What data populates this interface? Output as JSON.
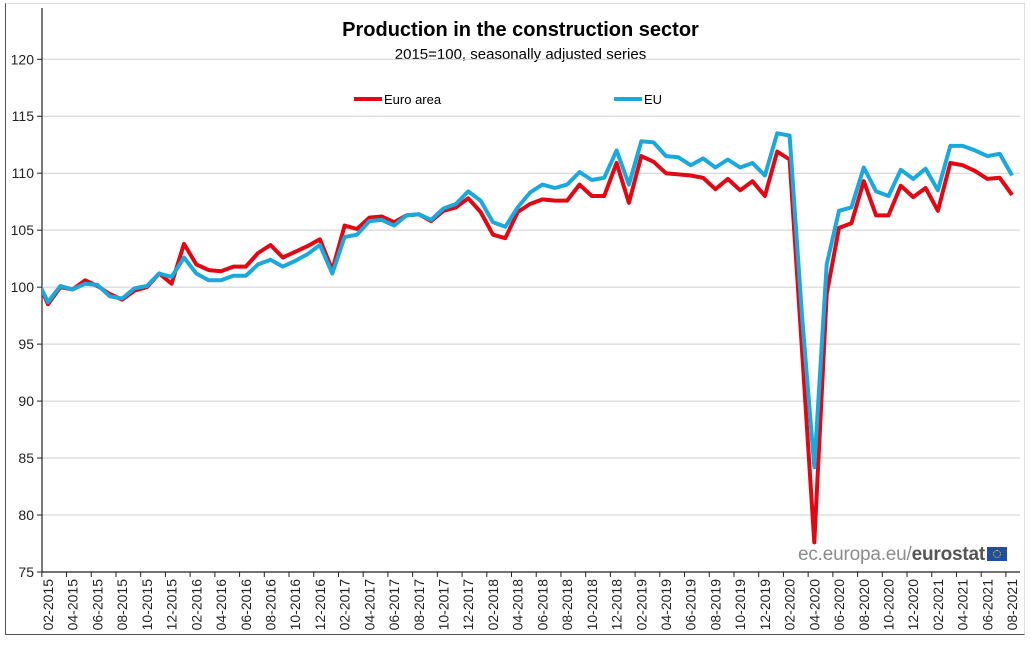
{
  "chart_data": {
    "type": "line",
    "title": "Production in the construction sector",
    "subtitle": "2015=100, seasonally adjusted series",
    "xlabel": "",
    "ylabel": "",
    "ylim": [
      75,
      124.5
    ],
    "yticks": [
      75,
      80,
      85,
      90,
      95,
      100,
      105,
      110,
      115,
      120
    ],
    "grid": "horizontal",
    "legend": "top",
    "categories": [
      "01-2015",
      "02-2015",
      "03-2015",
      "04-2015",
      "05-2015",
      "06-2015",
      "07-2015",
      "08-2015",
      "09-2015",
      "10-2015",
      "11-2015",
      "12-2015",
      "01-2016",
      "02-2016",
      "03-2016",
      "04-2016",
      "05-2016",
      "06-2016",
      "07-2016",
      "08-2016",
      "09-2016",
      "10-2016",
      "11-2016",
      "12-2016",
      "01-2017",
      "02-2017",
      "03-2017",
      "04-2017",
      "05-2017",
      "06-2017",
      "07-2017",
      "08-2017",
      "09-2017",
      "10-2017",
      "11-2017",
      "12-2017",
      "01-2018",
      "02-2018",
      "03-2018",
      "04-2018",
      "05-2018",
      "06-2018",
      "07-2018",
      "08-2018",
      "09-2018",
      "10-2018",
      "11-2018",
      "12-2018",
      "01-2019",
      "02-2019",
      "03-2019",
      "04-2019",
      "05-2019",
      "06-2019",
      "07-2019",
      "08-2019",
      "09-2019",
      "10-2019",
      "11-2019",
      "12-2019",
      "01-2020",
      "02-2020",
      "03-2020",
      "04-2020",
      "05-2020",
      "06-2020",
      "07-2020",
      "08-2020",
      "09-2020",
      "10-2020",
      "11-2020",
      "12-2020",
      "01-2021",
      "02-2021",
      "03-2021",
      "04-2021",
      "05-2021",
      "06-2021",
      "07-2021",
      "08-2021"
    ],
    "tick_labels": [
      "02-2015",
      "04-2015",
      "06-2015",
      "08-2015",
      "10-2015",
      "12-2015",
      "02-2016",
      "04-2016",
      "06-2016",
      "08-2016",
      "10-2016",
      "12-2016",
      "02-2017",
      "04-2017",
      "06-2017",
      "08-2017",
      "10-2017",
      "12-2017",
      "02-2018",
      "04-2018",
      "06-2018",
      "08-2018",
      "10-2018",
      "12-2018",
      "02-2019",
      "04-2019",
      "06-2019",
      "08-2019",
      "10-2019",
      "12-2019",
      "02-2020",
      "04-2020",
      "06-2020",
      "08-2020",
      "10-2020",
      "12-2020",
      "02-2021",
      "04-2021",
      "06-2021",
      "08-2021"
    ],
    "series": [
      {
        "name": "Euro area",
        "color": "#e30613",
        "values": [
          101.0,
          98.5,
          100.0,
          99.8,
          100.6,
          100.1,
          99.4,
          98.9,
          99.7,
          100.0,
          101.2,
          100.3,
          103.8,
          102.0,
          101.5,
          101.4,
          101.8,
          101.8,
          103.0,
          103.7,
          102.6,
          103.1,
          103.6,
          104.2,
          101.5,
          105.4,
          105.1,
          106.1,
          106.2,
          105.7,
          106.3,
          106.4,
          105.8,
          106.7,
          107.0,
          107.8,
          106.6,
          104.6,
          104.3,
          106.6,
          107.3,
          107.7,
          107.6,
          107.6,
          109.0,
          108.0,
          108.0,
          110.9,
          107.4,
          111.5,
          111.0,
          110.0,
          109.9,
          109.8,
          109.6,
          108.6,
          109.5,
          108.5,
          109.3,
          108.0,
          111.9,
          111.2,
          94.5,
          77.6,
          99.4,
          105.2,
          105.6,
          109.3,
          106.3,
          106.3,
          108.9,
          107.9,
          108.7,
          106.7,
          110.9,
          110.7,
          110.2,
          109.5,
          109.6,
          108.1
        ]
      },
      {
        "name": "EU",
        "color": "#1ba8dd",
        "values": [
          100.9,
          98.7,
          100.1,
          99.8,
          100.3,
          100.2,
          99.2,
          99.0,
          99.9,
          100.1,
          101.2,
          100.9,
          102.6,
          101.2,
          100.6,
          100.6,
          101.0,
          101.0,
          102.0,
          102.4,
          101.8,
          102.3,
          102.9,
          103.7,
          101.2,
          104.4,
          104.6,
          105.8,
          105.9,
          105.4,
          106.3,
          106.4,
          105.9,
          106.9,
          107.3,
          108.4,
          107.6,
          105.7,
          105.3,
          107.0,
          108.3,
          109.0,
          108.7,
          109.0,
          110.1,
          109.4,
          109.6,
          112.0,
          109.0,
          112.8,
          112.7,
          111.5,
          111.4,
          110.7,
          111.3,
          110.5,
          111.2,
          110.5,
          110.9,
          109.8,
          113.5,
          113.3,
          97.5,
          84.2,
          102.0,
          106.7,
          107.0,
          110.5,
          108.4,
          108.0,
          110.3,
          109.5,
          110.4,
          108.5,
          112.4,
          112.4,
          112.0,
          111.5,
          111.7,
          109.8
        ]
      }
    ]
  },
  "branding": {
    "site": "ec.europa.eu/",
    "name": "eurostat"
  }
}
